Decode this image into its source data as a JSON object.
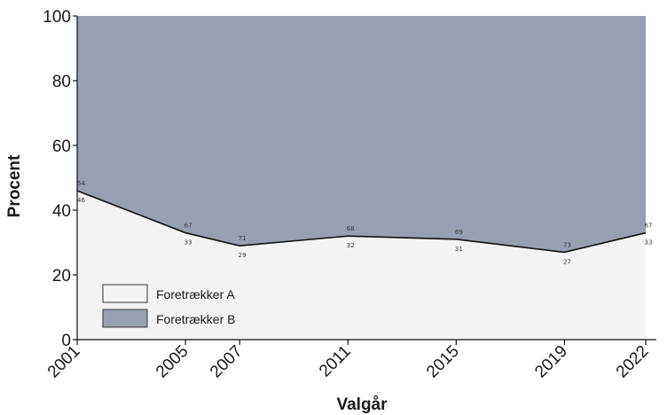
{
  "chart_data": {
    "type": "area",
    "stacked": true,
    "xlabel": "Valgår",
    "ylabel": "Procent",
    "ylim": [
      0,
      100
    ],
    "yticks": [
      0,
      20,
      40,
      60,
      80,
      100
    ],
    "x": [
      2001,
      2005,
      2007,
      2011,
      2015,
      2019,
      2022
    ],
    "x_tick_labels": [
      "2001",
      "2005",
      "2007",
      "2011",
      "2015",
      "2019",
      "2022"
    ],
    "series": [
      {
        "name": "Foretrækker A",
        "color": "#f3f3f5",
        "values": [
          46,
          33,
          29,
          32,
          31,
          27,
          33
        ]
      },
      {
        "name": "Foretrækker B",
        "color": "#989fb0",
        "values": [
          54,
          67,
          71,
          68,
          69,
          73,
          67
        ]
      }
    ],
    "legend_position": "bottom-left",
    "grid": false
  }
}
